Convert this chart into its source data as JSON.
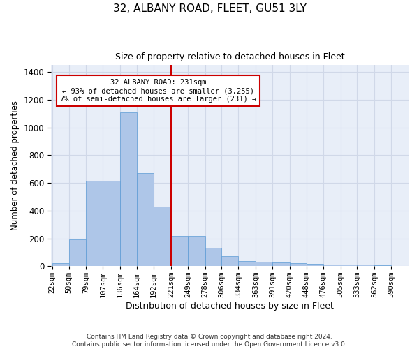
{
  "title": "32, ALBANY ROAD, FLEET, GU51 3LY",
  "subtitle": "Size of property relative to detached houses in Fleet",
  "xlabel": "Distribution of detached houses by size in Fleet",
  "ylabel": "Number of detached properties",
  "footer_line1": "Contains HM Land Registry data © Crown copyright and database right 2024.",
  "footer_line2": "Contains public sector information licensed under the Open Government Licence v3.0.",
  "annotation_line1": "32 ALBANY ROAD: 231sqm",
  "annotation_line2": "← 93% of detached houses are smaller (3,255)",
  "annotation_line3": "7% of semi-detached houses are larger (231) →",
  "bar_color": "#aec6e8",
  "bar_edge_color": "#5b9bd5",
  "grid_color": "#d0d8e8",
  "background_color": "#e8eef8",
  "vline_color": "#cc0000",
  "annotation_box_color": "#cc0000",
  "bins": [
    22,
    50,
    79,
    107,
    136,
    164,
    192,
    221,
    249,
    278,
    306,
    334,
    363,
    391,
    420,
    448,
    476,
    505,
    533,
    562,
    590
  ],
  "bar_heights": [
    20,
    195,
    615,
    615,
    1110,
    670,
    430,
    220,
    220,
    130,
    70,
    35,
    30,
    25,
    20,
    15,
    10,
    10,
    10,
    5
  ],
  "vline_x": 221,
  "ylim": [
    0,
    1450
  ],
  "yticks": [
    0,
    200,
    400,
    600,
    800,
    1000,
    1200,
    1400
  ]
}
